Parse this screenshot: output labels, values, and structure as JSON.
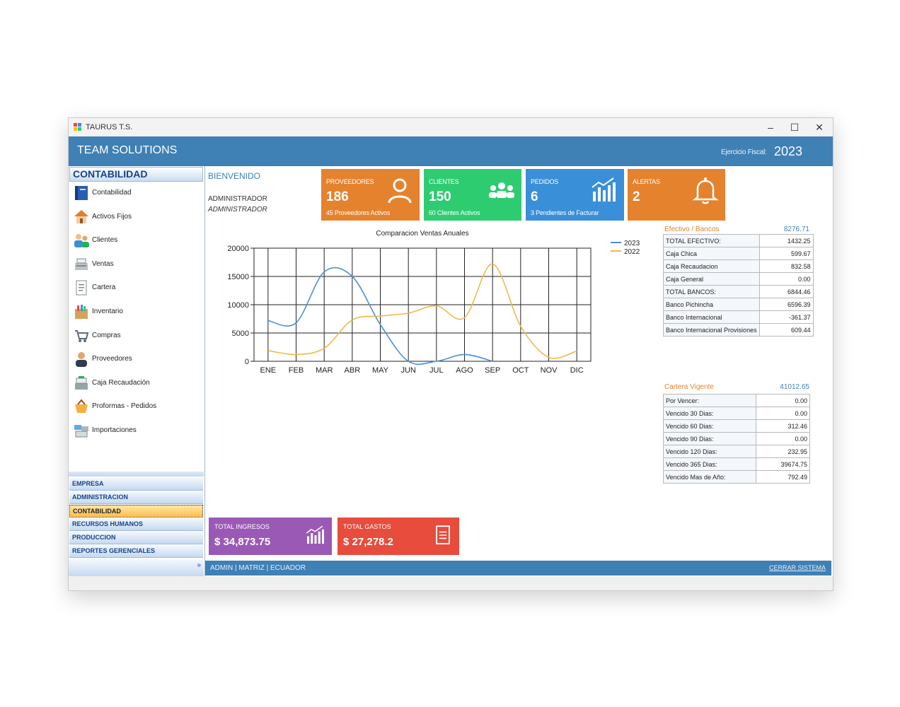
{
  "window": {
    "title": "TAURUS T.S."
  },
  "header": {
    "brand": "TEAM SOLUTIONS",
    "fiscal_label": "Ejercicio Fiscal:",
    "fiscal_year": "2023"
  },
  "sidebar": {
    "section_title": "CONTABILIDAD",
    "items": [
      {
        "label": "Contabilidad",
        "icon": "book-icon"
      },
      {
        "label": "Activos Fijos",
        "icon": "house-icon"
      },
      {
        "label": "Clientes",
        "icon": "users-icon"
      },
      {
        "label": "Ventas",
        "icon": "cash-register-icon"
      },
      {
        "label": "Cartera",
        "icon": "document-icon"
      },
      {
        "label": "Inventario",
        "icon": "box-icon"
      },
      {
        "label": "Compras",
        "icon": "cart-icon"
      },
      {
        "label": "Proveedores",
        "icon": "person-icon"
      },
      {
        "label": "Caja Recaudación",
        "icon": "register-icon"
      },
      {
        "label": "Proformas - Pedidos",
        "icon": "basket-icon"
      },
      {
        "label": "Importaciones",
        "icon": "stack-icon"
      }
    ],
    "nav_buttons": [
      {
        "label": "EMPRESA",
        "active": false
      },
      {
        "label": "ADMINISTRACION",
        "active": false
      },
      {
        "label": "CONTABILIDAD",
        "active": true
      },
      {
        "label": "RECURSOS HUMANOS",
        "active": false
      },
      {
        "label": "PRODUCCION",
        "active": false
      },
      {
        "label": "REPORTES GERENCIALES",
        "active": false
      }
    ]
  },
  "welcome": {
    "title": "BIENVENIDO",
    "user": "ADMINISTRADOR",
    "role": "ADMINISTRADOR"
  },
  "cards": [
    {
      "title": "PROVEEDORES",
      "value": "186",
      "sub": "45 Proveedores Activos",
      "color": "#e5822e",
      "icon": "person-outline-icon"
    },
    {
      "title": "CLIENTES",
      "value": "150",
      "sub": "60 Clientes Activos",
      "color": "#2ecc71",
      "icon": "group-icon"
    },
    {
      "title": "PEDIDOS",
      "value": "6",
      "sub": "3 Pendientes de Facturar",
      "color": "#3a8fd9",
      "icon": "bar-chart-icon"
    },
    {
      "title": "ALERTAS",
      "value": "2",
      "sub": "",
      "color": "#e5822e",
      "icon": "bell-icon"
    }
  ],
  "totals": [
    {
      "title": "TOTAL INGRESOS",
      "value": "$ 34,873.75",
      "color": "#9b59b6",
      "icon": "bar-chart-icon"
    },
    {
      "title": "TOTAL GASTOS",
      "value": "$ 27,278.2",
      "color": "#e74c3c",
      "icon": "document-icon"
    }
  ],
  "chart_data": {
    "type": "line",
    "title": "Comparacion Ventas Anuales",
    "categories": [
      "ENE",
      "FEB",
      "MAR",
      "ABR",
      "MAY",
      "JUN",
      "JUL",
      "AGO",
      "SEP",
      "OCT",
      "NOV",
      "DIC"
    ],
    "series": [
      {
        "name": "2023",
        "color": "#4a90d9",
        "values": [
          7200,
          6800,
          15800,
          15000,
          6500,
          0,
          0,
          1200,
          0,
          null,
          null,
          null
        ]
      },
      {
        "name": "2022",
        "color": "#f0b94a",
        "values": [
          1900,
          1200,
          2300,
          7300,
          8000,
          8500,
          9800,
          7700,
          17200,
          6200,
          700,
          1800
        ]
      }
    ],
    "yticks": [
      0,
      5000,
      10000,
      15000,
      20000
    ],
    "ylim": [
      0,
      20000
    ],
    "grid": true,
    "legend": "top-right",
    "xlabel": "",
    "ylabel": ""
  },
  "efectivo": {
    "title": "Efectivo / Bancos",
    "total": "8276.71",
    "rows": [
      {
        "label": "TOTAL EFECTIVO:",
        "value": "1432.25"
      },
      {
        "label": "Caja Chica",
        "value": "599.67"
      },
      {
        "label": "Caja Recaudacion",
        "value": "832.58"
      },
      {
        "label": "Caja General",
        "value": "0.00"
      },
      {
        "label": "TOTAL BANCOS:",
        "value": "6844.46"
      },
      {
        "label": "Banco Pichincha",
        "value": "6596.39"
      },
      {
        "label": "Banco Internacional",
        "value": "-361.37"
      },
      {
        "label": "Banco Internacional Provisiones",
        "value": "609.44"
      }
    ]
  },
  "cartera": {
    "title": "Cartera Vigente",
    "total": "41012.65",
    "rows": [
      {
        "label": "Por Vencer:",
        "value": "0.00"
      },
      {
        "label": "Vencido 30 Dias:",
        "value": "0.00"
      },
      {
        "label": "Vencido 60 Dias:",
        "value": "312.46"
      },
      {
        "label": "Vencido 90 Dias:",
        "value": "0.00"
      },
      {
        "label": "Vencido 120 Dias:",
        "value": "232.95"
      },
      {
        "label": "Vencido 365 Dias:",
        "value": "39674.75"
      },
      {
        "label": "Vencido Mas de Año:",
        "value": "792.49"
      }
    ]
  },
  "status": {
    "text": "ADMIN  |  MATRIZ  |  ECUADOR",
    "logout": "CERRAR SISTEMA"
  }
}
